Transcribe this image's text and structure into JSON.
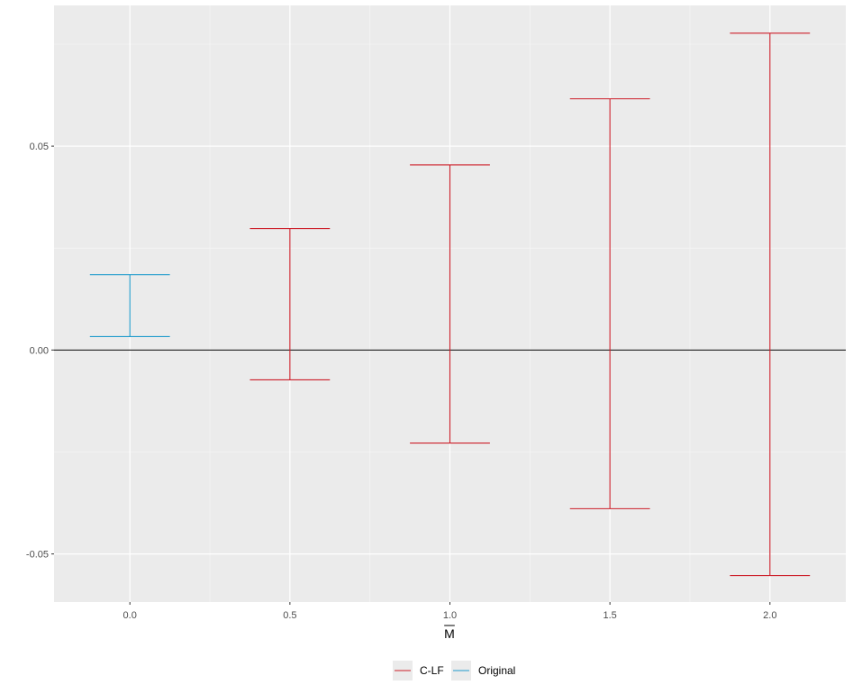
{
  "chart_data": {
    "type": "errorbar",
    "x_label": "M",
    "x_label_overline": true,
    "x_range": [
      -0.237,
      2.237
    ],
    "y_range": [
      -0.0618,
      0.0845
    ],
    "x_ticks": [
      {
        "value": 0.0,
        "label": "0.0"
      },
      {
        "value": 0.5,
        "label": "0.5"
      },
      {
        "value": 1.0,
        "label": "1.0"
      },
      {
        "value": 1.5,
        "label": "1.5"
      },
      {
        "value": 2.0,
        "label": "2.0"
      }
    ],
    "y_ticks": [
      {
        "value": -0.05,
        "label": "-0.05"
      },
      {
        "value": 0.0,
        "label": "0.00"
      },
      {
        "value": 0.05,
        "label": "0.05"
      }
    ],
    "x_minor_breaks": [
      -0.25,
      0.25,
      0.75,
      1.25,
      1.75,
      2.25
    ],
    "y_minor_breaks": [
      -0.075,
      -0.025,
      0.025,
      0.075
    ],
    "grid": true,
    "reference_line": {
      "y": 0.0,
      "color": "#000000"
    },
    "errorbar_halfwidth": 0.125,
    "series": [
      {
        "name": "C-LF",
        "color": "#cc1f2a",
        "points": [
          {
            "x": 0.5,
            "ymin": -0.0073,
            "ymax": 0.0298
          },
          {
            "x": 1.0,
            "ymin": -0.0228,
            "ymax": 0.0454
          },
          {
            "x": 1.5,
            "ymin": -0.0389,
            "ymax": 0.0616
          },
          {
            "x": 2.0,
            "ymin": -0.0553,
            "ymax": 0.0777
          }
        ]
      },
      {
        "name": "Original",
        "color": "#1f9bcc",
        "points": [
          {
            "x": 0.0,
            "ymin": 0.0033,
            "ymax": 0.0185
          }
        ]
      }
    ],
    "legend": {
      "position": "bottom",
      "items": [
        "C-LF",
        "Original"
      ]
    },
    "colors": {
      "panel_background": "#ebebeb",
      "grid_major": "#ffffff",
      "grid_minor": "#f5f5f5",
      "legend_key_background": "#ebebeb"
    }
  }
}
